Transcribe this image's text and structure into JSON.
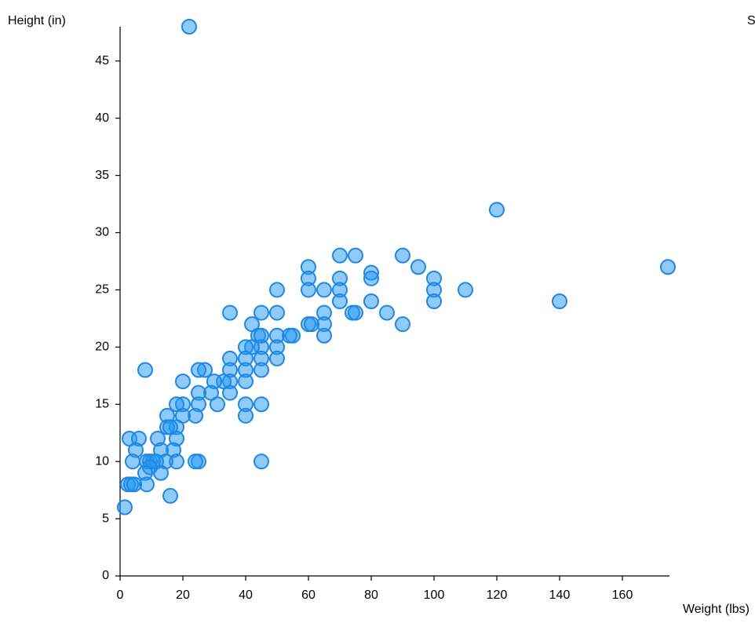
{
  "chart_data": {
    "type": "scatter",
    "x_label": "Weight (lbs)",
    "y_label": "Height (in)",
    "annotation": "S",
    "color": "#2196f3",
    "stroke": "#1e88e5",
    "xlim": [
      0,
      175
    ],
    "xticks": [
      0,
      20,
      40,
      60,
      80,
      100,
      120,
      140,
      160
    ],
    "ylim": [
      0,
      48
    ],
    "yticks": [
      0,
      5,
      10,
      15,
      20,
      25,
      30,
      35,
      40,
      45
    ],
    "x": [
      22,
      120,
      174.5,
      140,
      110,
      100,
      100,
      100,
      95,
      90,
      90,
      85,
      80,
      80,
      80,
      75,
      74,
      75,
      70,
      70,
      70,
      70,
      65,
      65,
      65,
      65,
      60,
      60,
      60,
      60,
      61,
      55,
      54,
      50,
      50,
      50,
      50,
      50,
      45,
      42,
      44,
      45,
      45,
      45,
      45,
      45,
      45,
      42,
      40,
      40,
      40,
      40,
      40,
      40,
      35,
      35,
      35,
      35,
      35,
      33,
      30,
      31,
      29,
      27,
      25,
      25,
      25,
      24,
      25,
      24,
      20,
      20,
      20,
      18,
      18,
      18,
      17,
      18,
      15,
      15,
      16,
      12,
      13,
      14.5,
      13,
      16,
      8,
      3,
      6,
      5,
      4,
      8.5,
      9.5,
      10.5,
      11.5,
      9.5,
      8,
      8.5,
      2.5,
      3.5,
      4.5,
      1.5
    ],
    "values": [
      48,
      32,
      27,
      24,
      25,
      26,
      25,
      24,
      27,
      28,
      22,
      23,
      26.5,
      26,
      24,
      28,
      23,
      23,
      28,
      26,
      25,
      24,
      25,
      23,
      22,
      21,
      27,
      26,
      25,
      22,
      22,
      21,
      21,
      25,
      23,
      21,
      20,
      19,
      23,
      22,
      21,
      21,
      20,
      19,
      18,
      15,
      10,
      20,
      20,
      19,
      18,
      17,
      15,
      14,
      23,
      19,
      18,
      17,
      16,
      17,
      17,
      15,
      16,
      18,
      18,
      16,
      15,
      14,
      10,
      10,
      17,
      15,
      14,
      15,
      13,
      12,
      11,
      10,
      14,
      13,
      13,
      12,
      11,
      10,
      9,
      7,
      18,
      12,
      12,
      11,
      10,
      10,
      10,
      10,
      10,
      9.5,
      9,
      8,
      8,
      8,
      8,
      6
    ]
  }
}
